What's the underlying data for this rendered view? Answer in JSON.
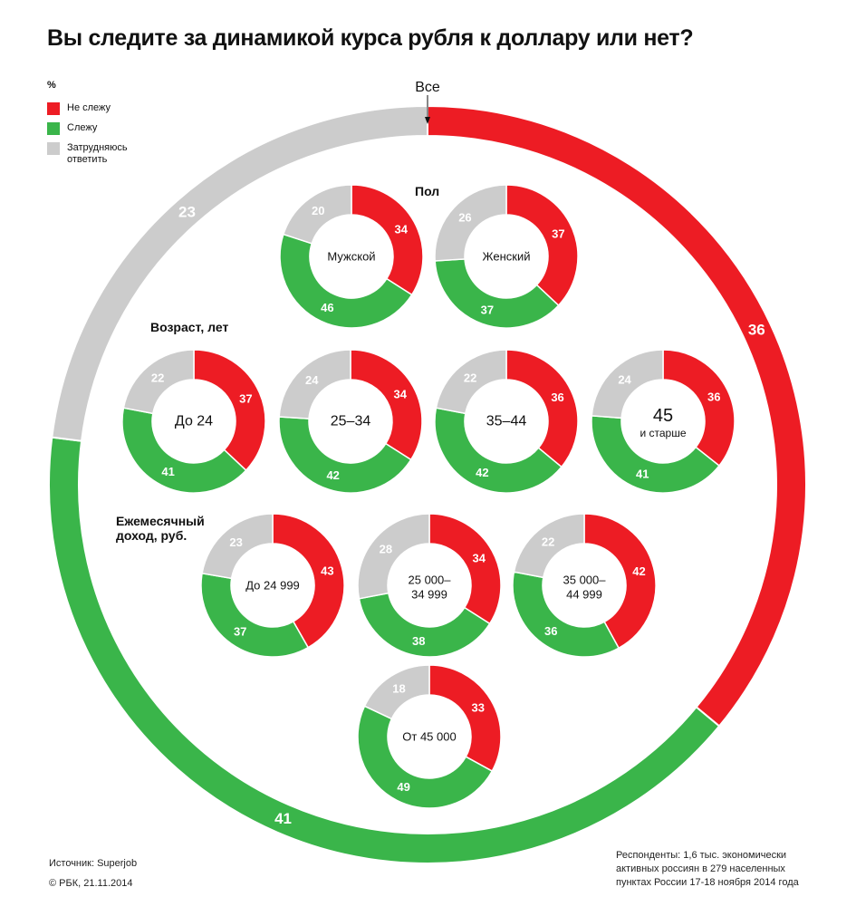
{
  "title": "Вы следите за динамикой курса рубля к доллару или нет?",
  "unit": "%",
  "colors": {
    "not_follow": "#ed1c24",
    "follow": "#3ab54a",
    "hard": "#cccccc"
  },
  "legend": [
    {
      "label": "Не слежу",
      "color": "#ed1c24"
    },
    {
      "label": "Слежу",
      "color": "#3ab54a"
    },
    {
      "label": "Затрудняюсь ответить",
      "color": "#cccccc"
    }
  ],
  "groups": {
    "gender": "Пол",
    "age": "Возраст, лет",
    "income": "Ежемесячный доход, руб."
  },
  "source": "Источник: Superjob",
  "copyright": "© РБК, 21.11.2014",
  "respondents": "Респонденты: 1,6 тыс. экономически активных россиян в 279 населенных пунктах России 17-18 ноября 2014 года",
  "chart_data": {
    "type": "pie",
    "categories": [
      "Не слежу",
      "Слежу",
      "Затрудняюсь ответить"
    ],
    "donuts": [
      {
        "label": "Все",
        "values": [
          36,
          41,
          23
        ]
      },
      {
        "label": "Мужской",
        "values": [
          34,
          46,
          20
        ]
      },
      {
        "label": "Женский",
        "values": [
          37,
          37,
          26
        ]
      },
      {
        "label": "До 24",
        "values": [
          37,
          41,
          22
        ]
      },
      {
        "label": "25–34",
        "values": [
          34,
          42,
          24
        ]
      },
      {
        "label": "35–44",
        "values": [
          36,
          42,
          22
        ]
      },
      {
        "label": "45",
        "sublabel": "и старше",
        "values": [
          36,
          41,
          24
        ]
      },
      {
        "label": "До 24 999",
        "values": [
          43,
          37,
          23
        ]
      },
      {
        "label": "25 000–",
        "sublabel": "34 999",
        "values": [
          34,
          38,
          28
        ]
      },
      {
        "label": "35 000–",
        "sublabel": "44 999",
        "values": [
          42,
          36,
          22
        ]
      },
      {
        "label": "От 45 000",
        "values": [
          33,
          49,
          18
        ]
      }
    ]
  }
}
